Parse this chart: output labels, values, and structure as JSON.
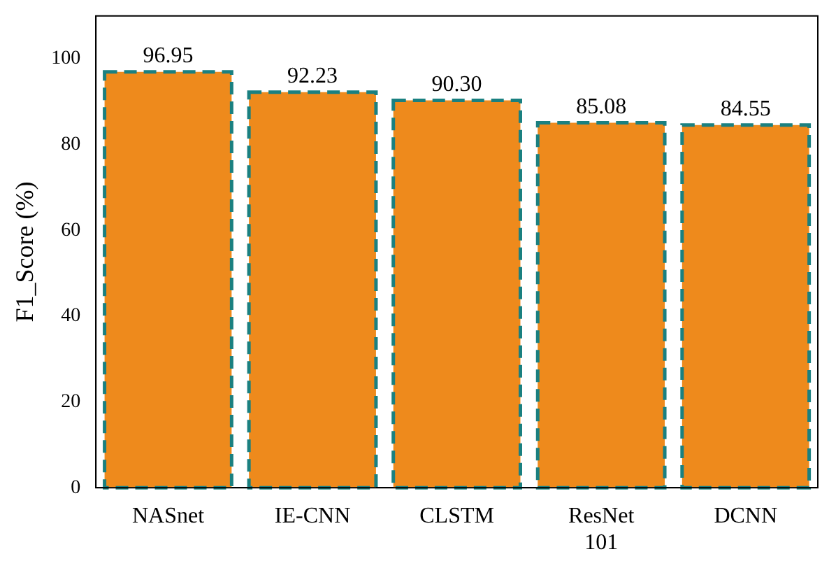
{
  "chart_data": {
    "type": "bar",
    "ylabel": "F1_Score (%)",
    "categories": [
      "NASnet",
      "IE-CNN",
      "CLSTM",
      "ResNet 101",
      "DCNN"
    ],
    "values": [
      96.95,
      92.23,
      90.3,
      85.08,
      84.55
    ],
    "color": "#ee8a1c",
    "ylim": [
      0,
      110
    ],
    "yticks": [
      0,
      20,
      40,
      60,
      80,
      100
    ],
    "value_labels": [
      "96.95",
      "92.23",
      "90.30",
      "85.08",
      "84.55"
    ],
    "grid": false,
    "legend": false
  }
}
